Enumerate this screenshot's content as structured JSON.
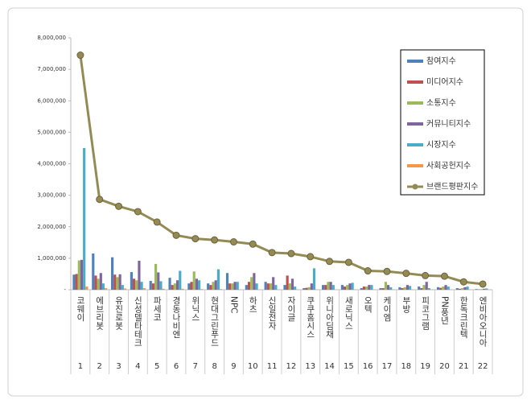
{
  "chart_data": {
    "type": "bar",
    "categories": [
      "코웨이",
      "에브리봇",
      "유진로봇",
      "신성델타테크",
      "파세코",
      "경동나비엔",
      "위닉스",
      "현대그린푸드",
      "NPC",
      "하츠",
      "신일전자",
      "자이글",
      "쿠쿠홈시스",
      "위니아딤채",
      "새로닉스",
      "오텍",
      "케이엠",
      "부방",
      "피코그램",
      "PN풍년",
      "한독크린텍",
      "엔비아오니아"
    ],
    "category_numbers": [
      1,
      2,
      3,
      4,
      5,
      6,
      7,
      8,
      9,
      10,
      11,
      12,
      13,
      14,
      15,
      16,
      17,
      18,
      19,
      20,
      21,
      22
    ],
    "ylim": [
      0,
      8000000
    ],
    "yticks": [
      {
        "value": 0,
        "label": "-"
      },
      {
        "value": 1000000,
        "label": "1,000,000"
      },
      {
        "value": 2000000,
        "label": "2,000,000"
      },
      {
        "value": 3000000,
        "label": "3,000,000"
      },
      {
        "value": 4000000,
        "label": "4,000,000"
      },
      {
        "value": 5000000,
        "label": "5,000,000"
      },
      {
        "value": 6000000,
        "label": "6,000,000"
      },
      {
        "value": 7000000,
        "label": "7,000,000"
      },
      {
        "value": 8000000,
        "label": "8,000,000"
      }
    ],
    "legend": "top-right",
    "series": [
      {
        "name": "참여지수",
        "color": "#4f81bd",
        "values": [
          480000,
          1150000,
          1030000,
          560000,
          280000,
          380000,
          200000,
          200000,
          530000,
          150000,
          250000,
          150000,
          50000,
          150000,
          150000,
          50000,
          50000,
          80000,
          100000,
          80000,
          50000,
          20000
        ]
      },
      {
        "name": "미디어지수",
        "color": "#c0504d",
        "values": [
          500000,
          450000,
          480000,
          350000,
          200000,
          150000,
          250000,
          150000,
          200000,
          250000,
          200000,
          450000,
          60000,
          150000,
          100000,
          100000,
          50000,
          50000,
          50000,
          60000,
          30000,
          10000
        ]
      },
      {
        "name": "소통지수",
        "color": "#9bbb59",
        "values": [
          930000,
          350000,
          400000,
          300000,
          820000,
          200000,
          580000,
          250000,
          200000,
          400000,
          200000,
          200000,
          80000,
          250000,
          150000,
          100000,
          250000,
          80000,
          150000,
          100000,
          50000,
          20000
        ]
      },
      {
        "name": "커뮤니티지수",
        "color": "#8064a2",
        "values": [
          950000,
          530000,
          490000,
          920000,
          550000,
          300000,
          350000,
          300000,
          250000,
          530000,
          400000,
          350000,
          200000,
          250000,
          200000,
          150000,
          150000,
          150000,
          250000,
          150000,
          80000,
          30000
        ]
      },
      {
        "name": "시장지수",
        "color": "#4bacc6",
        "values": [
          4500000,
          200000,
          150000,
          250000,
          270000,
          600000,
          300000,
          650000,
          250000,
          200000,
          150000,
          100000,
          680000,
          150000,
          220000,
          150000,
          80000,
          120000,
          50000,
          100000,
          100000,
          40000
        ]
      },
      {
        "name": "사회공헌지수",
        "color": "#f79646",
        "values": [
          100000,
          50000,
          40000,
          50000,
          30000,
          30000,
          20000,
          20000,
          10000,
          10000,
          10000,
          10000,
          10000,
          10000,
          10000,
          10000,
          10000,
          10000,
          10000,
          10000,
          10000,
          5000
        ]
      },
      {
        "name": "브랜드평판지수",
        "type": "line",
        "color": "#948a54",
        "values": [
          7450000,
          2870000,
          2650000,
          2480000,
          2150000,
          1730000,
          1620000,
          1580000,
          1520000,
          1450000,
          1180000,
          1150000,
          1050000,
          900000,
          870000,
          600000,
          580000,
          520000,
          450000,
          430000,
          250000,
          180000
        ]
      }
    ]
  }
}
